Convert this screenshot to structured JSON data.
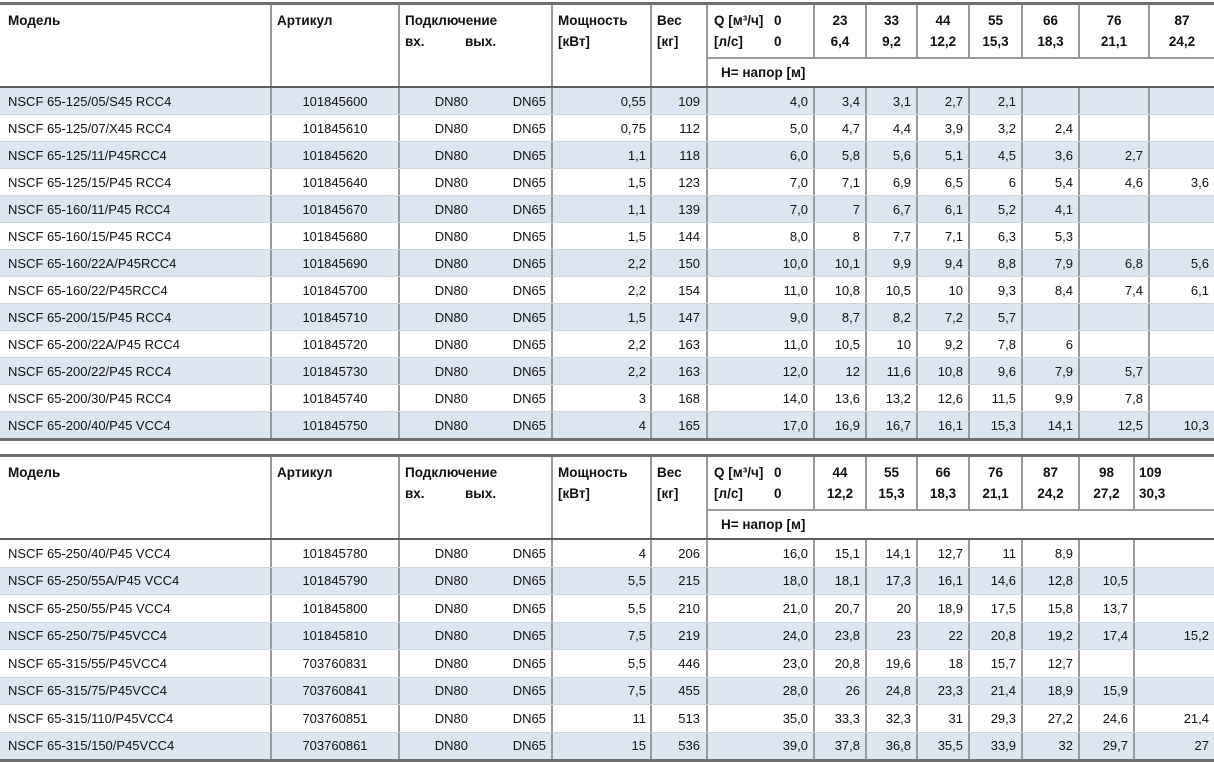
{
  "colors": {
    "row_alt_background": "#dce6f0",
    "row_background": "#ffffff",
    "column_line": "#999999",
    "row_line": "#ccd3db",
    "heavy_line": "#6f6f6f",
    "text": "#111111"
  },
  "tables": [
    {
      "headers": {
        "model": "Модель",
        "article": "Артикул",
        "connection": "Подключение",
        "conn_in": "вх.",
        "conn_out": "вых.",
        "power_line1": "Мощность",
        "power_line2": "[кВт]",
        "weight_line1": "Вес",
        "weight_line2": "[кг]",
        "q_label": "Q [м³/ч]",
        "q_zero": "0",
        "ls_label": "[л/с]",
        "ls_zero": "0",
        "head_row_label": "Н= напор [м]",
        "q_cols": [
          {
            "m3h": "23",
            "ls": "6,4"
          },
          {
            "m3h": "33",
            "ls": "9,2"
          },
          {
            "m3h": "44",
            "ls": "12,2"
          },
          {
            "m3h": "55",
            "ls": "15,3"
          },
          {
            "m3h": "66",
            "ls": "18,3"
          },
          {
            "m3h": "76",
            "ls": "21,1"
          },
          {
            "m3h": "87",
            "ls": "24,2"
          }
        ]
      },
      "rows": [
        {
          "model": "NSCF 65-125/05/S45 RCC4",
          "article": "101845600",
          "conn_in": "DN80",
          "conn_out": "DN65",
          "power": "0,55",
          "weight": "109",
          "h": [
            "4,0",
            "3,4",
            "3,1",
            "2,7",
            "2,1",
            "",
            "",
            ""
          ]
        },
        {
          "model": "NSCF 65-125/07/X45 RCC4",
          "article": "101845610",
          "conn_in": "DN80",
          "conn_out": "DN65",
          "power": "0,75",
          "weight": "112",
          "h": [
            "5,0",
            "4,7",
            "4,4",
            "3,9",
            "3,2",
            "2,4",
            "",
            ""
          ]
        },
        {
          "model": "NSCF 65-125/11/P45RCC4",
          "article": "101845620",
          "conn_in": "DN80",
          "conn_out": "DN65",
          "power": "1,1",
          "weight": "118",
          "h": [
            "6,0",
            "5,8",
            "5,6",
            "5,1",
            "4,5",
            "3,6",
            "2,7",
            ""
          ]
        },
        {
          "model": "NSCF 65-125/15/P45 RCC4",
          "article": "101845640",
          "conn_in": "DN80",
          "conn_out": "DN65",
          "power": "1,5",
          "weight": "123",
          "h": [
            "7,0",
            "7,1",
            "6,9",
            "6,5",
            "6",
            "5,4",
            "4,6",
            "3,6"
          ]
        },
        {
          "model": "NSCF 65-160/11/P45 RCC4",
          "article": "101845670",
          "conn_in": "DN80",
          "conn_out": "DN65",
          "power": "1,1",
          "weight": "139",
          "h": [
            "7,0",
            "7",
            "6,7",
            "6,1",
            "5,2",
            "4,1",
            "",
            ""
          ]
        },
        {
          "model": "NSCF 65-160/15/P45 RCC4",
          "article": "101845680",
          "conn_in": "DN80",
          "conn_out": "DN65",
          "power": "1,5",
          "weight": "144",
          "h": [
            "8,0",
            "8",
            "7,7",
            "7,1",
            "6,3",
            "5,3",
            "",
            ""
          ]
        },
        {
          "model": "NSCF 65-160/22A/P45RCC4",
          "article": "101845690",
          "conn_in": "DN80",
          "conn_out": "DN65",
          "power": "2,2",
          "weight": "150",
          "h": [
            "10,0",
            "10,1",
            "9,9",
            "9,4",
            "8,8",
            "7,9",
            "6,8",
            "5,6"
          ]
        },
        {
          "model": "NSCF 65-160/22/P45RCC4",
          "article": "101845700",
          "conn_in": "DN80",
          "conn_out": "DN65",
          "power": "2,2",
          "weight": "154",
          "h": [
            "11,0",
            "10,8",
            "10,5",
            "10",
            "9,3",
            "8,4",
            "7,4",
            "6,1"
          ]
        },
        {
          "model": "NSCF 65-200/15/P45 RCC4",
          "article": "101845710",
          "conn_in": "DN80",
          "conn_out": "DN65",
          "power": "1,5",
          "weight": "147",
          "h": [
            "9,0",
            "8,7",
            "8,2",
            "7,2",
            "5,7",
            "",
            "",
            ""
          ]
        },
        {
          "model": "NSCF 65-200/22A/P45 RCC4",
          "article": "101845720",
          "conn_in": "DN80",
          "conn_out": "DN65",
          "power": "2,2",
          "weight": "163",
          "h": [
            "11,0",
            "10,5",
            "10",
            "9,2",
            "7,8",
            "6",
            "",
            ""
          ]
        },
        {
          "model": "NSCF 65-200/22/P45 RCC4",
          "article": "101845730",
          "conn_in": "DN80",
          "conn_out": "DN65",
          "power": "2,2",
          "weight": "163",
          "h": [
            "12,0",
            "12",
            "11,6",
            "10,8",
            "9,6",
            "7,9",
            "5,7",
            ""
          ]
        },
        {
          "model": "NSCF 65-200/30/P45 RCC4",
          "article": "101845740",
          "conn_in": "DN80",
          "conn_out": "DN65",
          "power": "3",
          "weight": "168",
          "h": [
            "14,0",
            "13,6",
            "13,2",
            "12,6",
            "11,5",
            "9,9",
            "7,8",
            ""
          ]
        },
        {
          "model": "NSCF 65-200/40/P45 VCC4",
          "article": "101845750",
          "conn_in": "DN80",
          "conn_out": "DN65",
          "power": "4",
          "weight": "165",
          "h": [
            "17,0",
            "16,9",
            "16,7",
            "16,1",
            "15,3",
            "14,1",
            "12,5",
            "10,3"
          ]
        }
      ]
    },
    {
      "headers": {
        "model": "Модель",
        "article": "Артикул",
        "connection": "Подключение",
        "conn_in": "вх.",
        "conn_out": "вых.",
        "power_line1": "Мощность",
        "power_line2": "[кВт]",
        "weight_line1": "Вес",
        "weight_line2": "[кг]",
        "q_label": "Q [м³/ч]",
        "q_zero": "0",
        "ls_label": "[л/с]",
        "ls_zero": "0",
        "head_row_label": "Н= напор [м]",
        "q_cols": [
          {
            "m3h": "44",
            "ls": "12,2"
          },
          {
            "m3h": "55",
            "ls": "15,3"
          },
          {
            "m3h": "66",
            "ls": "18,3"
          },
          {
            "m3h": "76",
            "ls": "21,1"
          },
          {
            "m3h": "87",
            "ls": "24,2"
          },
          {
            "m3h": "98",
            "ls": "27,2"
          },
          {
            "m3h": "109",
            "ls": "30,3"
          }
        ]
      },
      "rows": [
        {
          "model": "NSCF 65-250/40/P45 VCC4",
          "article": "101845780",
          "conn_in": "DN80",
          "conn_out": "DN65",
          "power": "4",
          "weight": "206",
          "h": [
            "16,0",
            "15,1",
            "14,1",
            "12,7",
            "11",
            "8,9",
            "",
            ""
          ]
        },
        {
          "model": "NSCF 65-250/55A/P45 VCC4",
          "article": "101845790",
          "conn_in": "DN80",
          "conn_out": "DN65",
          "power": "5,5",
          "weight": "215",
          "h": [
            "18,0",
            "18,1",
            "17,3",
            "16,1",
            "14,6",
            "12,8",
            "10,5",
            ""
          ]
        },
        {
          "model": "NSCF 65-250/55/P45 VCC4",
          "article": "101845800",
          "conn_in": "DN80",
          "conn_out": "DN65",
          "power": "5,5",
          "weight": "210",
          "h": [
            "21,0",
            "20,7",
            "20",
            "18,9",
            "17,5",
            "15,8",
            "13,7",
            ""
          ]
        },
        {
          "model": "NSCF 65-250/75/P45VCC4",
          "article": "101845810",
          "conn_in": "DN80",
          "conn_out": "DN65",
          "power": "7,5",
          "weight": "219",
          "h": [
            "24,0",
            "23,8",
            "23",
            "22",
            "20,8",
            "19,2",
            "17,4",
            "15,2"
          ]
        },
        {
          "model": "NSCF 65-315/55/P45VCC4",
          "article": "703760831",
          "conn_in": "DN80",
          "conn_out": "DN65",
          "power": "5,5",
          "weight": "446",
          "h": [
            "23,0",
            "20,8",
            "19,6",
            "18",
            "15,7",
            "12,7",
            "",
            ""
          ]
        },
        {
          "model": "NSCF 65-315/75/P45VCC4",
          "article": "703760841",
          "conn_in": "DN80",
          "conn_out": "DN65",
          "power": "7,5",
          "weight": "455",
          "h": [
            "28,0",
            "26",
            "24,8",
            "23,3",
            "21,4",
            "18,9",
            "15,9",
            ""
          ]
        },
        {
          "model": "NSCF 65-315/110/P45VCC4",
          "article": "703760851",
          "conn_in": "DN80",
          "conn_out": "DN65",
          "power": "11",
          "weight": "513",
          "h": [
            "35,0",
            "33,3",
            "32,3",
            "31",
            "29,3",
            "27,2",
            "24,6",
            "21,4"
          ]
        },
        {
          "model": "NSCF 65-315/150/P45VCC4",
          "article": "703760861",
          "conn_in": "DN80",
          "conn_out": "DN65",
          "power": "15",
          "weight": "536",
          "h": [
            "39,0",
            "37,8",
            "36,8",
            "35,5",
            "33,9",
            "32",
            "29,7",
            "27"
          ]
        }
      ]
    }
  ]
}
